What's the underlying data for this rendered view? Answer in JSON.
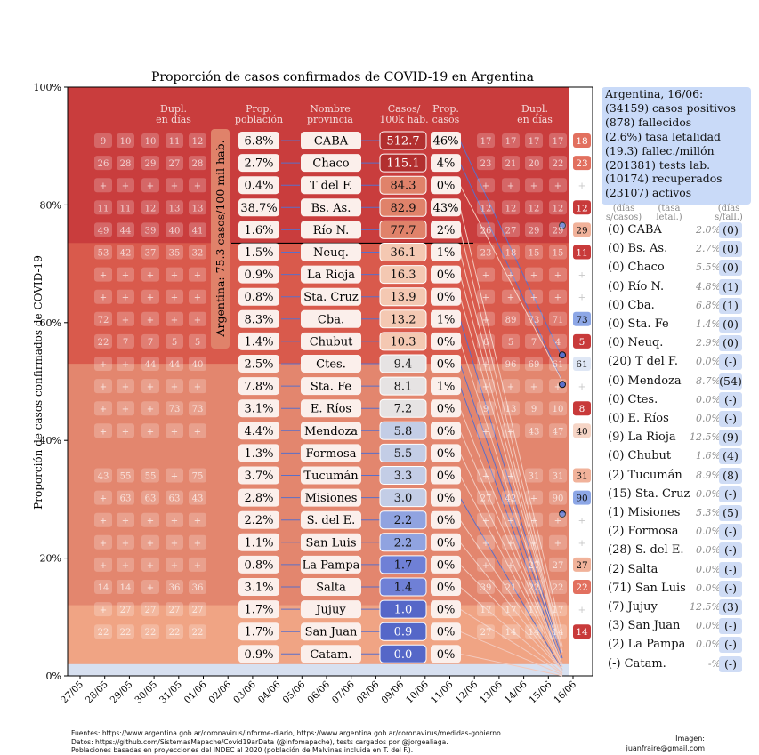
{
  "chart_data": {
    "type": "area",
    "title": "Proporción de casos confirmados de COVID-19 en Argentina",
    "ylabel": "Proporción de casos confirmados de COVID-19",
    "xlabel": "",
    "ylim": [
      0,
      100
    ],
    "yticks": [
      "0%",
      "20%",
      "40%",
      "60%",
      "80%",
      "100%"
    ],
    "x": [
      "27/05",
      "28/05",
      "29/05",
      "30/05",
      "31/05",
      "01/06",
      "02/06",
      "03/06",
      "04/06",
      "05/06",
      "06/06",
      "07/06",
      "08/06",
      "09/06",
      "10/06",
      "11/06",
      "12/06",
      "13/06",
      "14/06",
      "15/06",
      "16/06"
    ],
    "col_headers": {
      "dupl_left": "Dupl.\nen días",
      "prop_pob": "Prop.\npoblación",
      "nombre": "Nombre\nprovincia",
      "casos100k": "Casos/\n100k hab.",
      "prop_casos": "Prop.\ncasos",
      "dupl_right": "Dupl.\nen días"
    },
    "argentina_label": "Argentina: 75.3 casos/100 mil hab.",
    "rows": [
      {
        "name": "CABA",
        "prop_pob": "6.8%",
        "casos": "512.7",
        "prop_casos": "46%",
        "dl": [
          "9",
          "10",
          "10",
          "11",
          "12"
        ],
        "dr": [
          "17",
          "17",
          "17",
          "17"
        ],
        "last": "18",
        "cum": 0.54
      },
      {
        "name": "Chaco",
        "prop_pob": "2.7%",
        "casos": "115.1",
        "prop_casos": "4%",
        "dl": [
          "26",
          "28",
          "29",
          "27",
          "28"
        ],
        "dr": [
          "23",
          "21",
          "20",
          "22"
        ],
        "last": "23",
        "cum": 0.5
      },
      {
        "name": "T del F.",
        "prop_pob": "0.4%",
        "casos": "84.3",
        "prop_casos": "0%",
        "dl": [
          "+",
          "+",
          "+",
          "+",
          "+"
        ],
        "dr": [
          "+",
          "+",
          "+",
          "+"
        ],
        "last": "+",
        "cum": 0.5
      },
      {
        "name": "Bs. As.",
        "prop_pob": "38.7%",
        "casos": "82.9",
        "prop_casos": "43%",
        "dl": [
          "11",
          "11",
          "12",
          "13",
          "13"
        ],
        "dr": [
          "12",
          "12",
          "12",
          "12"
        ],
        "last": "12",
        "cum": 0.07
      },
      {
        "name": "Río N.",
        "prop_pob": "1.6%",
        "casos": "77.7",
        "prop_casos": "2%",
        "dl": [
          "49",
          "44",
          "39",
          "40",
          "41"
        ],
        "dr": [
          "26",
          "27",
          "29",
          "29"
        ],
        "last": "29",
        "cum": 0.05
      },
      {
        "name": "Neuq.",
        "prop_pob": "1.5%",
        "casos": "36.1",
        "prop_casos": "1%",
        "dl": [
          "53",
          "42",
          "37",
          "35",
          "32"
        ],
        "dr": [
          "23",
          "18",
          "15",
          "15"
        ],
        "last": "11",
        "cum": 0.04
      },
      {
        "name": "La Rioja",
        "prop_pob": "0.9%",
        "casos": "16.3",
        "prop_casos": "0%",
        "dl": [
          "+",
          "+",
          "+",
          "+",
          "+"
        ],
        "dr": [
          "+",
          "+",
          "+",
          "+"
        ],
        "last": "+",
        "cum": 0.04
      },
      {
        "name": "Sta. Cruz",
        "prop_pob": "0.8%",
        "casos": "13.9",
        "prop_casos": "0%",
        "dl": [
          "+",
          "+",
          "+",
          "+",
          "+"
        ],
        "dr": [
          "+",
          "+",
          "+",
          "+"
        ],
        "last": "+",
        "cum": 0.04
      },
      {
        "name": "Cba.",
        "prop_pob": "8.3%",
        "casos": "13.2",
        "prop_casos": "1%",
        "dl": [
          "72",
          "+",
          "+",
          "+",
          "+"
        ],
        "dr": [
          "+",
          "89",
          "73",
          "71"
        ],
        "last": "73",
        "cum": 0.03
      },
      {
        "name": "Chubut",
        "prop_pob": "1.4%",
        "casos": "10.3",
        "prop_casos": "0%",
        "dl": [
          "22",
          "7",
          "7",
          "5",
          "5"
        ],
        "dr": [
          "6",
          "5",
          "7",
          "4"
        ],
        "last": "5",
        "cum": 0.03
      },
      {
        "name": "Ctes.",
        "prop_pob": "2.5%",
        "casos": "9.4",
        "prop_casos": "0%",
        "dl": [
          "+",
          "+",
          "44",
          "44",
          "40"
        ],
        "dr": [
          "+",
          "96",
          "69",
          "61"
        ],
        "last": "61",
        "cum": 0.03
      },
      {
        "name": "Sta. Fe",
        "prop_pob": "7.8%",
        "casos": "8.1",
        "prop_casos": "1%",
        "dl": [
          "+",
          "+",
          "+",
          "+",
          "+"
        ],
        "dr": [
          "+",
          "+",
          "+",
          "+"
        ],
        "last": "+",
        "cum": 0.02
      },
      {
        "name": "E. Ríos",
        "prop_pob": "3.1%",
        "casos": "7.2",
        "prop_casos": "0%",
        "dl": [
          "+",
          "+",
          "+",
          "73",
          "73"
        ],
        "dr": [
          "9",
          "13",
          "9",
          "10"
        ],
        "last": "8",
        "cum": 0.02
      },
      {
        "name": "Mendoza",
        "prop_pob": "4.4%",
        "casos": "5.8",
        "prop_casos": "0%",
        "dl": [
          "+",
          "+",
          "+",
          "+",
          "+"
        ],
        "dr": [
          "+",
          "+",
          "43",
          "47"
        ],
        "last": "40",
        "cum": 0.02
      },
      {
        "name": "Formosa",
        "prop_pob": "1.3%",
        "casos": "5.5",
        "prop_casos": "0%",
        "dl": [
          "",
          "",
          "",
          "",
          ""
        ],
        "dr": [
          "",
          "",
          "",
          ""
        ],
        "last": "",
        "cum": 0.015
      },
      {
        "name": "Tucumán",
        "prop_pob": "3.7%",
        "casos": "3.3",
        "prop_casos": "0%",
        "dl": [
          "43",
          "55",
          "55",
          "+",
          "75"
        ],
        "dr": [
          "+",
          "+",
          "31",
          "31"
        ],
        "last": "31",
        "cum": 0.015
      },
      {
        "name": "Misiones",
        "prop_pob": "2.8%",
        "casos": "3.0",
        "prop_casos": "0%",
        "dl": [
          "+",
          "63",
          "63",
          "63",
          "43"
        ],
        "dr": [
          "27",
          "42",
          "+",
          "90"
        ],
        "last": "90",
        "cum": 0.01
      },
      {
        "name": "S. del E.",
        "prop_pob": "2.2%",
        "casos": "2.2",
        "prop_casos": "0%",
        "dl": [
          "+",
          "+",
          "+",
          "+",
          "+"
        ],
        "dr": [
          "+",
          "+",
          "+",
          "+"
        ],
        "last": "+",
        "cum": 0.01
      },
      {
        "name": "San Luis",
        "prop_pob": "1.1%",
        "casos": "2.2",
        "prop_casos": "0%",
        "dl": [
          "+",
          "+",
          "+",
          "+",
          "+"
        ],
        "dr": [
          "+",
          "+",
          "+",
          "+"
        ],
        "last": "+",
        "cum": 0.01
      },
      {
        "name": "La Pampa",
        "prop_pob": "0.8%",
        "casos": "1.7",
        "prop_casos": "0%",
        "dl": [
          "+",
          "+",
          "+",
          "+",
          "+"
        ],
        "dr": [
          "+",
          "+",
          "27",
          "27"
        ],
        "last": "27",
        "cum": 0.01
      },
      {
        "name": "Salta",
        "prop_pob": "3.1%",
        "casos": "1.4",
        "prop_casos": "0%",
        "dl": [
          "14",
          "14",
          "+",
          "36",
          "36"
        ],
        "dr": [
          "39",
          "21",
          "22",
          "22"
        ],
        "last": "22",
        "cum": 0.005
      },
      {
        "name": "Jujuy",
        "prop_pob": "1.7%",
        "casos": "1.0",
        "prop_casos": "0%",
        "dl": [
          "+",
          "27",
          "27",
          "27",
          "27"
        ],
        "dr": [
          "17",
          "17",
          "17",
          "17"
        ],
        "last": "+",
        "cum": 0.004
      },
      {
        "name": "San Juan",
        "prop_pob": "1.7%",
        "casos": "0.9",
        "prop_casos": "0%",
        "dl": [
          "22",
          "22",
          "22",
          "22",
          "22"
        ],
        "dr": [
          "27",
          "14",
          "14",
          "14"
        ],
        "last": "14",
        "cum": 0.002
      },
      {
        "name": "Catam.",
        "prop_pob": "0.9%",
        "casos": "0.0",
        "prop_casos": "0%",
        "dl": [
          "",
          "",
          "",
          "",
          ""
        ],
        "dr": [
          "",
          "",
          "",
          ""
        ],
        "last": "",
        "cum": 0.0
      }
    ],
    "summary": [
      "Argentina, 16/06:",
      "(34159) casos positivos",
      "(878) fallecidos",
      "(2.6%) tasa letalidad",
      "(19.3) fallec./millón",
      "(201381) tests lab.",
      "(10174) recuperados",
      "(23107) activos"
    ],
    "legend_head": {
      "a": "(días\ns/casos)",
      "b": "(tasa\nletal.)",
      "c": "(días\ns/fall.)"
    },
    "deaths": [
      {
        "name": "(0) CABA",
        "lt": "2.0%",
        "fl": "(0)"
      },
      {
        "name": "(0) Bs. As.",
        "lt": "2.7%",
        "fl": "(0)"
      },
      {
        "name": "(0) Chaco",
        "lt": "5.5%",
        "fl": "(0)"
      },
      {
        "name": "(0) Río N.",
        "lt": "4.8%",
        "fl": "(1)"
      },
      {
        "name": "(0) Cba.",
        "lt": "6.8%",
        "fl": "(1)"
      },
      {
        "name": "(0) Sta. Fe",
        "lt": "1.4%",
        "fl": "(0)"
      },
      {
        "name": "(0) Neuq.",
        "lt": "2.9%",
        "fl": "(0)"
      },
      {
        "name": "(20) T del F.",
        "lt": "0.0%",
        "fl": "(-)"
      },
      {
        "name": "(0) Mendoza",
        "lt": "8.7%",
        "fl": "(54)"
      },
      {
        "name": "(0) Ctes.",
        "lt": "0.0%",
        "fl": "(-)"
      },
      {
        "name": "(0) E. Ríos",
        "lt": "0.0%",
        "fl": "(-)"
      },
      {
        "name": "(9) La Rioja",
        "lt": "12.5%",
        "fl": "(9)"
      },
      {
        "name": "(0) Chubut",
        "lt": "1.6%",
        "fl": "(4)"
      },
      {
        "name": "(2) Tucumán",
        "lt": "8.9%",
        "fl": "(8)"
      },
      {
        "name": "(15) Sta. Cruz",
        "lt": "0.0%",
        "fl": "(-)"
      },
      {
        "name": "(1) Misiones",
        "lt": "5.3%",
        "fl": "(5)"
      },
      {
        "name": "(2) Formosa",
        "lt": "0.0%",
        "fl": "(-)"
      },
      {
        "name": "(28) S. del E.",
        "lt": "0.0%",
        "fl": "(-)"
      },
      {
        "name": "(2) Salta",
        "lt": "0.0%",
        "fl": "(-)"
      },
      {
        "name": "(71) San Luis",
        "lt": "0.0%",
        "fl": "(-)"
      },
      {
        "name": "(7) Jujuy",
        "lt": "12.5%",
        "fl": "(3)"
      },
      {
        "name": "(3) San Juan",
        "lt": "0.0%",
        "fl": "(-)"
      },
      {
        "name": "(2) La Pampa",
        "lt": "0.0%",
        "fl": "(-)"
      },
      {
        "name": "(-) Catam.",
        "lt": "-%",
        "fl": "(-)"
      }
    ],
    "footnotes": [
      "Fuentes: https://www.argentina.gob.ar/coronavirus/informe-diario, https://www.argentina.gob.ar/coronavirus/medidas-gobierno",
      "Datos: https://github.com/SistemasMapache/Covid19arData (@infomapache), tests cargados por @jorgealiaga.",
      "Poblaciones basadas en proyecciones del INDEC al 2020 (población de Malvinas incluida en T. del F.)."
    ],
    "credit": [
      "Imagen:",
      "juanfraire@gmail.com"
    ]
  }
}
